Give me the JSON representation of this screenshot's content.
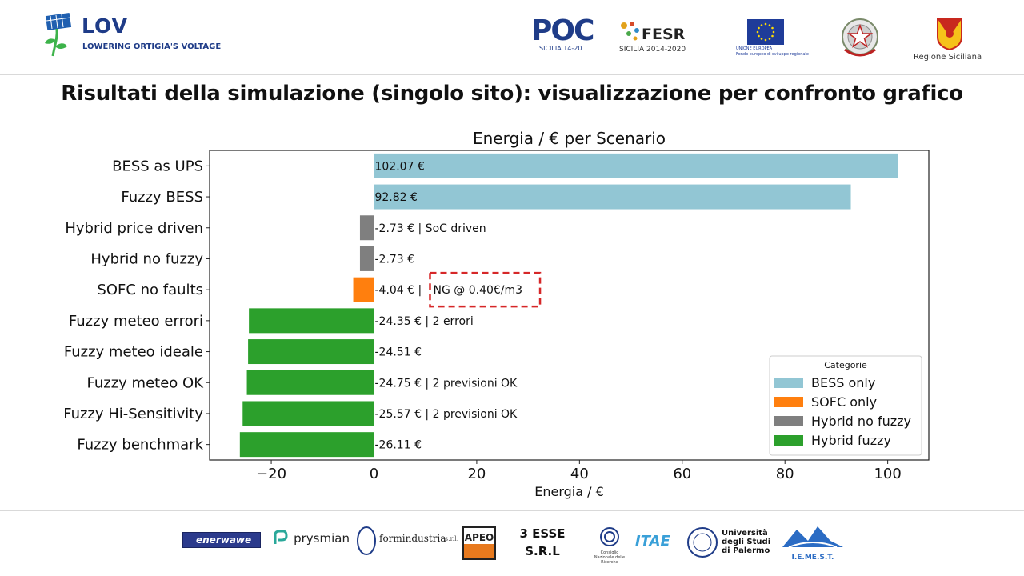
{
  "header": {
    "brand": {
      "title": "LOV",
      "subtitle": "LOWERING ORTIGIA'S VOLTAGE"
    },
    "partners": {
      "poc": {
        "main": "POC",
        "sub": "SICILIA 14-20"
      },
      "fesr": {
        "main": "FESR",
        "sub": "SICILIA 2014-2020"
      },
      "eu": {
        "line1": "UNIONE EUROPEA",
        "line2": "Fondo europeo di sviluppo regionale"
      },
      "regione": {
        "label": "Regione Siciliana"
      }
    }
  },
  "slide": {
    "title": "Risultati della simulazione (singolo sito): visualizzazione per confronto grafico"
  },
  "chart_data": {
    "type": "bar",
    "orientation": "horizontal",
    "title": "Energia / € per Scenario",
    "xlabel": "Energia / €",
    "ylabel": "",
    "xlim": [
      -32,
      108
    ],
    "xticks": [
      {
        "value": -20,
        "label": "−20"
      },
      {
        "value": 0,
        "label": "0"
      },
      {
        "value": 20,
        "label": "20"
      },
      {
        "value": 40,
        "label": "40"
      },
      {
        "value": 60,
        "label": "60"
      },
      {
        "value": 80,
        "label": "80"
      },
      {
        "value": 100,
        "label": "100"
      }
    ],
    "grid": false,
    "categories": [
      "BESS as UPS",
      "Fuzzy BESS",
      "Hybrid price driven",
      "Hybrid no fuzzy",
      "SOFC no faults",
      "Fuzzy meteo errori",
      "Fuzzy meteo ideale",
      "Fuzzy meteo OK",
      "Fuzzy Hi-Sensitivity",
      "Fuzzy benchmark"
    ],
    "values": [
      102.07,
      92.82,
      -2.73,
      -2.73,
      -4.04,
      -24.35,
      -24.51,
      -24.75,
      -25.57,
      -26.11
    ],
    "bar_category_index": [
      0,
      0,
      2,
      2,
      1,
      3,
      3,
      3,
      3,
      3
    ],
    "data_labels": [
      "102.07 €",
      "92.82 €",
      "-2.73 € | SoC driven",
      "-2.73 €",
      "-4.04 € |",
      "-24.35 € | 2 errori",
      "-24.51 €",
      "-24.75 € | 2 previsioni OK",
      "-25.57 € | 2 previsioni OK",
      "-26.11 €"
    ],
    "annotation": {
      "bar_index": 4,
      "text": "NG @ 0.40€/m3",
      "box_color": "#d62728",
      "box_style": "dashed"
    },
    "legend": {
      "title": "Categorie",
      "position": "lower-right",
      "entries": [
        {
          "name": "BESS only",
          "color": "#92c6d4"
        },
        {
          "name": "SOFC only",
          "color": "#ff7f0e"
        },
        {
          "name": "Hybrid no fuzzy",
          "color": "#7f7f7f"
        },
        {
          "name": "Hybrid fuzzy",
          "color": "#2ca02c"
        }
      ]
    }
  },
  "footer": {
    "logos": {
      "enerwawe": "enerwawe",
      "prysmian": "prysmian",
      "formindustria": "formindustria",
      "formindustria_suffix": "s.r.l.",
      "apeo": "APEO",
      "tre_esse_line1": "3 ESSE",
      "tre_esse_line2": "S.R.L",
      "cnr": "Consiglio Nazionale delle Ricerche",
      "itae": "ITAE",
      "unipa_line1": "Università",
      "unipa_line2": "degli Studi",
      "unipa_line3": "di Palermo",
      "iemest": "I.E.ME.S.T."
    }
  }
}
